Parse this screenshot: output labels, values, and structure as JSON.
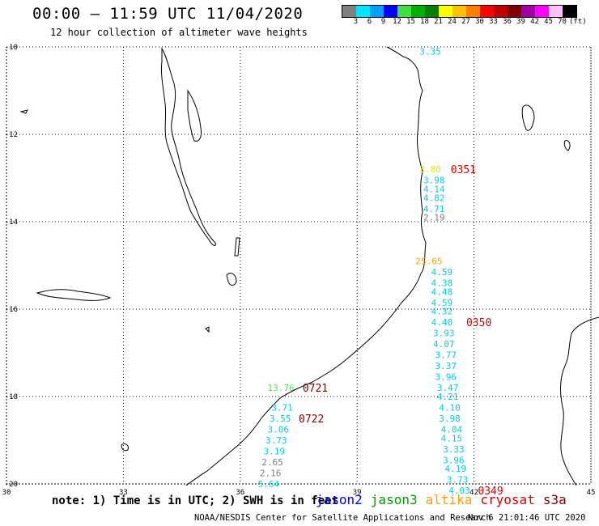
{
  "header": {
    "title": "00:00 – 11:59 UTC 11/04/2020",
    "subtitle": "12 hour collection of altimeter wave heights"
  },
  "color_scale": {
    "labels": [
      "3",
      "6",
      "9",
      "12",
      "15",
      "18",
      "21",
      "24",
      "27",
      "30",
      "33",
      "36",
      "39",
      "42",
      "45",
      "70",
      "(ft)"
    ],
    "colors": [
      "#808080",
      "#00e5ff",
      "#00a0ff",
      "#0000ff",
      "#40e040",
      "#00b000",
      "#008000",
      "#ffff00",
      "#ffc000",
      "#ff8000",
      "#ff0000",
      "#c00000",
      "#800000",
      "#a000a0",
      "#ff00ff",
      "#ffc0ff",
      "#000000"
    ]
  },
  "map": {
    "lat_labels": [
      {
        "lat": -10,
        "label": "-10"
      },
      {
        "lat": -12,
        "label": "-12"
      },
      {
        "lat": -14,
        "label": "-14"
      },
      {
        "lat": -16,
        "label": "-16"
      },
      {
        "lat": -18,
        "label": "-18"
      },
      {
        "lat": -20,
        "label": "-20"
      }
    ],
    "lon_labels": [
      {
        "lon": 30,
        "label": "30"
      },
      {
        "lon": 33,
        "label": "33"
      },
      {
        "lon": 36,
        "label": "36"
      },
      {
        "lon": 39,
        "label": "39"
      },
      {
        "lon": 42,
        "label": "42"
      },
      {
        "lon": 45,
        "label": "45"
      }
    ],
    "wave_heights": [
      {
        "lon": 40.6,
        "lat": -10.1,
        "text": "3.35",
        "color": "#00d0e0"
      },
      {
        "lon": 40.6,
        "lat": -12.8,
        "text": "3.80",
        "color": "#e8e800"
      },
      {
        "lon": 40.7,
        "lat": -13.05,
        "text": "3.98",
        "color": "#00d0e0"
      },
      {
        "lon": 40.7,
        "lat": -13.25,
        "text": "4.14",
        "color": "#00d0e0"
      },
      {
        "lon": 40.7,
        "lat": -13.45,
        "text": "4.82",
        "color": "#00d0e0"
      },
      {
        "lon": 40.7,
        "lat": -13.7,
        "text": "4.71",
        "color": "#00d0e0"
      },
      {
        "lon": 40.7,
        "lat": -13.9,
        "text": "2.19",
        "color": "#808080"
      },
      {
        "lon": 40.5,
        "lat": -14.9,
        "text": "25.65",
        "color": "#ffa000"
      },
      {
        "lon": 40.9,
        "lat": -15.15,
        "text": "4.59",
        "color": "#00d0e0"
      },
      {
        "lon": 40.9,
        "lat": -15.4,
        "text": "4.38",
        "color": "#00d0e0"
      },
      {
        "lon": 40.9,
        "lat": -15.6,
        "text": "4.48",
        "color": "#00d0e0"
      },
      {
        "lon": 40.9,
        "lat": -15.85,
        "text": "4.59",
        "color": "#00d0e0"
      },
      {
        "lon": 40.9,
        "lat": -16.05,
        "text": "4.32",
        "color": "#00d0e0"
      },
      {
        "lon": 40.9,
        "lat": -16.3,
        "text": "4.40",
        "color": "#00d0e0"
      },
      {
        "lon": 40.95,
        "lat": -16.55,
        "text": "3.93",
        "color": "#00d0e0"
      },
      {
        "lon": 40.95,
        "lat": -16.8,
        "text": "4.07",
        "color": "#00d0e0"
      },
      {
        "lon": 41.0,
        "lat": -17.05,
        "text": "3.77",
        "color": "#00d0e0"
      },
      {
        "lon": 41.0,
        "lat": -17.3,
        "text": "3.37",
        "color": "#00d0e0"
      },
      {
        "lon": 41.0,
        "lat": -17.55,
        "text": "3.96",
        "color": "#00d0e0"
      },
      {
        "lon": 41.05,
        "lat": -17.8,
        "text": "3.47",
        "color": "#00d0e0"
      },
      {
        "lon": 41.05,
        "lat": -18.0,
        "text": "4.21",
        "color": "#00d0e0"
      },
      {
        "lon": 41.1,
        "lat": -18.25,
        "text": "4.10",
        "color": "#00d0e0"
      },
      {
        "lon": 41.1,
        "lat": -18.5,
        "text": "3.98",
        "color": "#00d0e0"
      },
      {
        "lon": 41.15,
        "lat": -18.75,
        "text": "4.04",
        "color": "#00d0e0"
      },
      {
        "lon": 41.15,
        "lat": -18.95,
        "text": "4.15",
        "color": "#00d0e0"
      },
      {
        "lon": 41.2,
        "lat": -19.2,
        "text": "3.33",
        "color": "#00d0e0"
      },
      {
        "lon": 41.2,
        "lat": -19.45,
        "text": "3.96",
        "color": "#00d0e0"
      },
      {
        "lon": 41.25,
        "lat": -19.65,
        "text": "4.19",
        "color": "#00d0e0"
      },
      {
        "lon": 41.3,
        "lat": -19.9,
        "text": "3.73",
        "color": "#00d0e0"
      },
      {
        "lon": 41.35,
        "lat": -20.15,
        "text": "4.03",
        "color": "#00d0e0"
      },
      {
        "lon": 36.7,
        "lat": -17.8,
        "text": "13.76",
        "color": "#60e060"
      },
      {
        "lon": 36.8,
        "lat": -18.25,
        "text": "3.71",
        "color": "#00d0e0"
      },
      {
        "lon": 36.75,
        "lat": -18.5,
        "text": "3.55",
        "color": "#00d0e0"
      },
      {
        "lon": 36.7,
        "lat": -18.75,
        "text": "3.06",
        "color": "#00d0e0"
      },
      {
        "lon": 36.65,
        "lat": -19.0,
        "text": "3.73",
        "color": "#00d0e0"
      },
      {
        "lon": 36.6,
        "lat": -19.25,
        "text": "3.19",
        "color": "#00d0e0"
      },
      {
        "lon": 36.55,
        "lat": -19.5,
        "text": "2.65",
        "color": "#808080"
      },
      {
        "lon": 36.5,
        "lat": -19.75,
        "text": "2.16",
        "color": "#808080"
      },
      {
        "lon": 36.45,
        "lat": -20.0,
        "text": "5.64",
        "color": "#00d0e0"
      }
    ],
    "pass_times": [
      {
        "lon": 41.4,
        "lat": -12.8,
        "text": "0351",
        "color": "#e00000"
      },
      {
        "lon": 41.8,
        "lat": -16.3,
        "text": "0350",
        "color": "#e00000"
      },
      {
        "lon": 42.1,
        "lat": -20.15,
        "text": "0349",
        "color": "#e00000"
      },
      {
        "lon": 37.6,
        "lat": -17.8,
        "text": "0721",
        "color": "#800000"
      },
      {
        "lon": 37.5,
        "lat": -18.5,
        "text": "0722",
        "color": "#800000"
      }
    ]
  },
  "footer": {
    "note": "note: 1) Time is in UTC; 2) SWH is in feet",
    "legend": [
      {
        "name": "jason2",
        "color": "#0000ff"
      },
      {
        "name": "jason3",
        "color": "#00a000"
      },
      {
        "name": "altika",
        "color": "#ffa000"
      },
      {
        "name": "cryosat",
        "color": "#e00000"
      },
      {
        "name": "s3a",
        "color": "#800000"
      }
    ],
    "credit": "NOAA/NESDIS Center for Satellite Applications and Research",
    "timestamp": "Nov  6 21:01:46 UTC 2020"
  }
}
